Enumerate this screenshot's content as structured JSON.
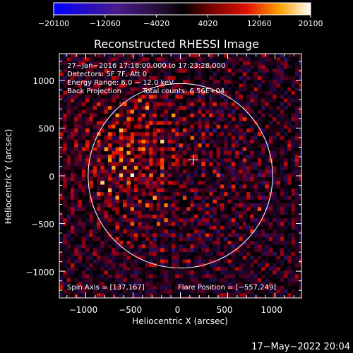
{
  "chart_data": {
    "type": "heatmap",
    "title": "Reconstructed RHESSI Image",
    "xlabel": "Heliocentric X (arcsec)",
    "ylabel": "Heliocentric Y (arcsec)",
    "xlim": [
      -1280,
      1280
    ],
    "ylim": [
      -1280,
      1280
    ],
    "xticks": [
      -1000,
      -500,
      0,
      500,
      1000
    ],
    "yticks": [
      -1000,
      -500,
      0,
      500,
      1000
    ],
    "xtick_labels": [
      "−1000",
      "−500",
      "0",
      "500",
      "1000"
    ],
    "ytick_labels": [
      "−1000",
      "−500",
      "0",
      "500",
      "1000"
    ],
    "colorbar": {
      "range": [
        -20100,
        20100
      ],
      "tick_values": [
        -20100,
        -12060,
        -4020,
        4020,
        12060,
        20100
      ],
      "tick_labels": [
        "−20100",
        "−12060",
        "−4020",
        "4020",
        "12060",
        "20100"
      ],
      "colormap": "blue-purple-red-yellow-white"
    },
    "annotations": [
      "27−Jan−2016 17:18:00.000 to 17:23:28.000",
      "Detectors: 5F 7F, Att 0",
      "Energy Range: 6.0 − 12.0 keV",
      "Back Projection"
    ],
    "total_counts_label": "Total counts: 6.56E+04",
    "spin_axis_label": "Spin Axis = [137,167]",
    "flare_position_label": "Flare Position = [−557,249]",
    "solar_disk_radius_arcsec": 975,
    "solar_disk_center": [
      0,
      0
    ],
    "spin_axis_marker": [
      137,
      167
    ],
    "grid": false
  },
  "footer": {
    "timestamp": "17−May−2022 20:04"
  },
  "colors": {
    "background": "#000000",
    "text": "#ffffff",
    "frame": "#ffffff"
  }
}
